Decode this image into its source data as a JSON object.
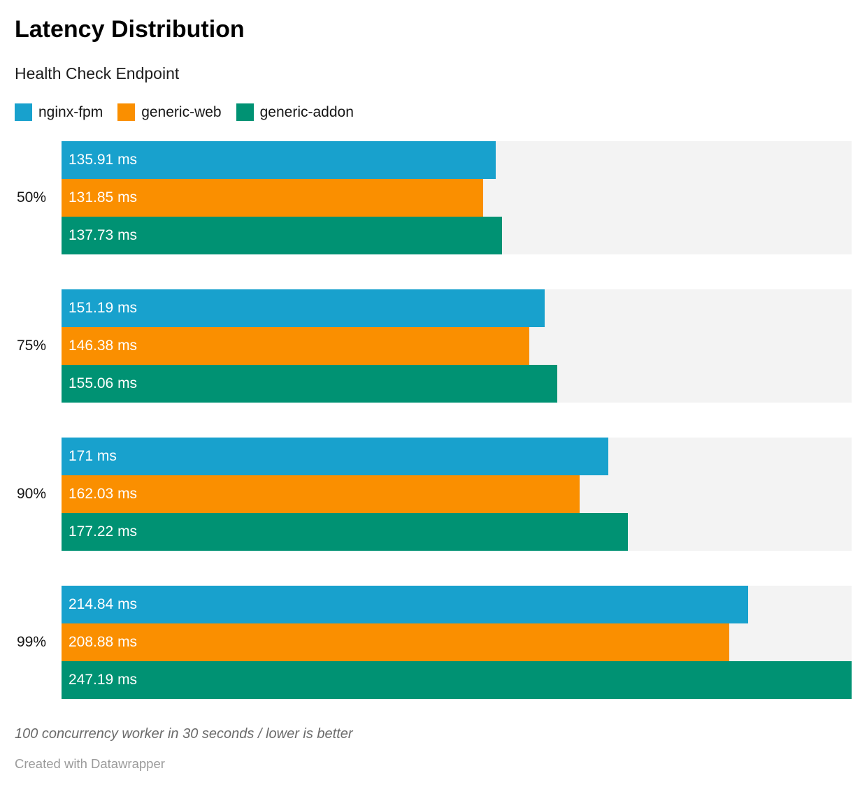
{
  "header": {
    "title": "Latency Distribution",
    "subtitle": "Health Check Endpoint"
  },
  "chart_data": {
    "type": "bar",
    "orientation": "horizontal",
    "title": "Latency Distribution",
    "subtitle": "Health Check Endpoint",
    "unit": "ms",
    "xlim": [
      0,
      247.19
    ],
    "grid": false,
    "legend_position": "top",
    "track_color": "#f3f3f3",
    "categories": [
      "50%",
      "75%",
      "90%",
      "99%"
    ],
    "series": [
      {
        "name": "nginx-fpm",
        "color": "#18a1cd",
        "values": [
          135.91,
          151.19,
          171,
          214.84
        ],
        "labels": [
          "135.91 ms",
          "151.19 ms",
          "171 ms",
          "214.84 ms"
        ]
      },
      {
        "name": "generic-web",
        "color": "#fa8f00",
        "values": [
          131.85,
          146.38,
          162.03,
          208.88
        ],
        "labels": [
          "131.85 ms",
          "146.38 ms",
          "162.03 ms",
          "208.88 ms"
        ]
      },
      {
        "name": "generic-addon",
        "color": "#009273",
        "values": [
          137.73,
          155.06,
          177.22,
          247.19
        ],
        "labels": [
          "137.73 ms",
          "155.06 ms",
          "177.22 ms",
          "247.19 ms"
        ]
      }
    ]
  },
  "footer": {
    "note": "100 concurrency worker in 30 seconds / lower is better",
    "credit": "Created with Datawrapper"
  }
}
